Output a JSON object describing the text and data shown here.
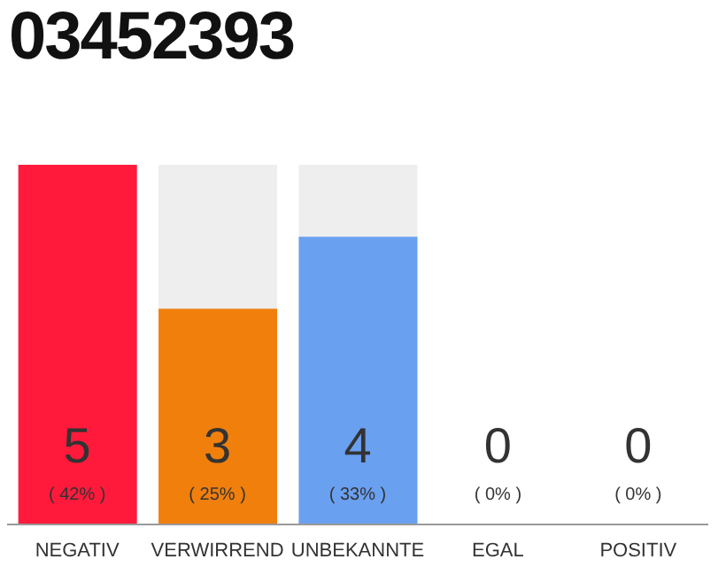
{
  "chart_data": {
    "type": "bar",
    "title": "03452393",
    "categories": [
      "NEGATIV",
      "VERWIRREND",
      "UNBEKANNTE",
      "EGAL",
      "POSITIV"
    ],
    "values": [
      5,
      3,
      4,
      0,
      0
    ],
    "colors": [
      "#ff1a3c",
      "#f07f0c",
      "#6aa0f0",
      null,
      null
    ],
    "value_labels": [
      "5",
      "3",
      "4",
      "0",
      "0"
    ],
    "annotations": [
      "( 42% )",
      "( 25% )",
      "( 33% )",
      "( 0% )",
      "( 0% )"
    ],
    "grid": false,
    "legend": false
  }
}
